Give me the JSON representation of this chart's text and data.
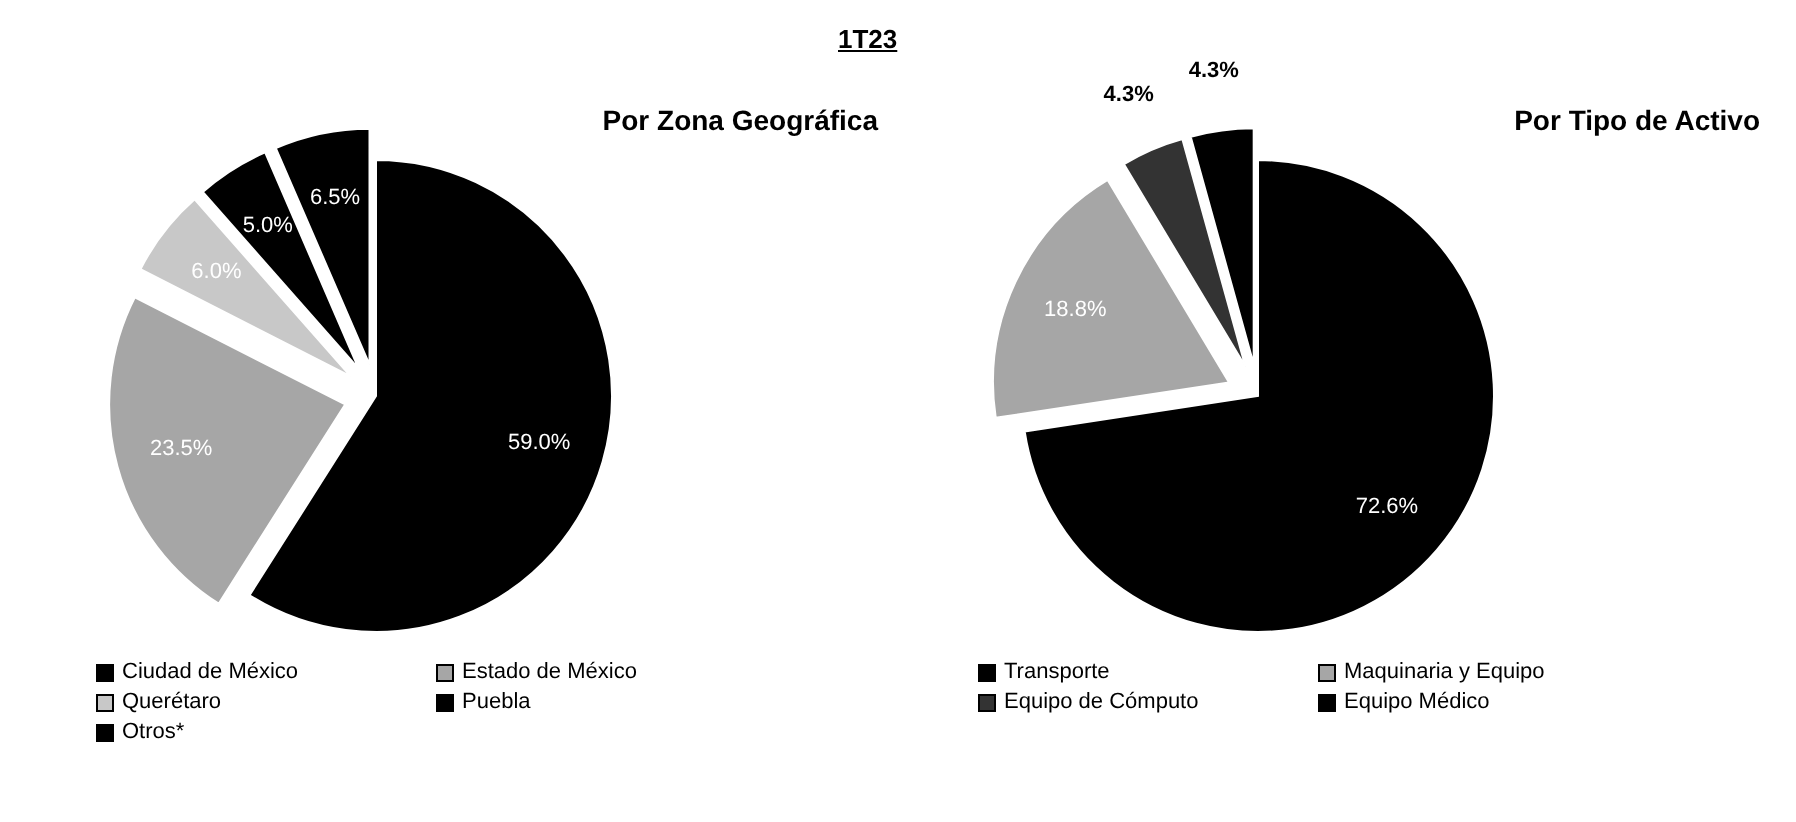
{
  "chart_data": [
    {
      "type": "pie",
      "title": "Por Zona Geográfica",
      "annotations": [
        "1T23"
      ],
      "categories": [
        "Ciudad de México",
        "Estado de México",
        "Querétaro",
        "Puebla",
        "Otros*"
      ],
      "values": [
        59.0,
        23.5,
        6.0,
        5.0,
        6.5
      ],
      "value_labels": [
        "59.0%",
        "23.5%",
        "6.0%",
        "5.0%",
        "6.5%"
      ],
      "colors": [
        "#000000",
        "#a6a6a6",
        "#c8c8c8",
        "#000000",
        "#000000"
      ],
      "legend": "bottom"
    },
    {
      "type": "pie",
      "title": "Por Tipo de Activo",
      "categories": [
        "Transporte",
        "Maquinaria y Equipo",
        "Equipo de Cómputo",
        "Equipo Médico"
      ],
      "values": [
        72.6,
        18.8,
        4.3,
        4.3
      ],
      "value_labels": [
        "72.6%",
        "18.8%",
        "4.3%",
        "4.3%"
      ],
      "colors": [
        "#000000",
        "#a6a6a6",
        "#333333",
        "#000000"
      ],
      "legend": "bottom"
    }
  ]
}
